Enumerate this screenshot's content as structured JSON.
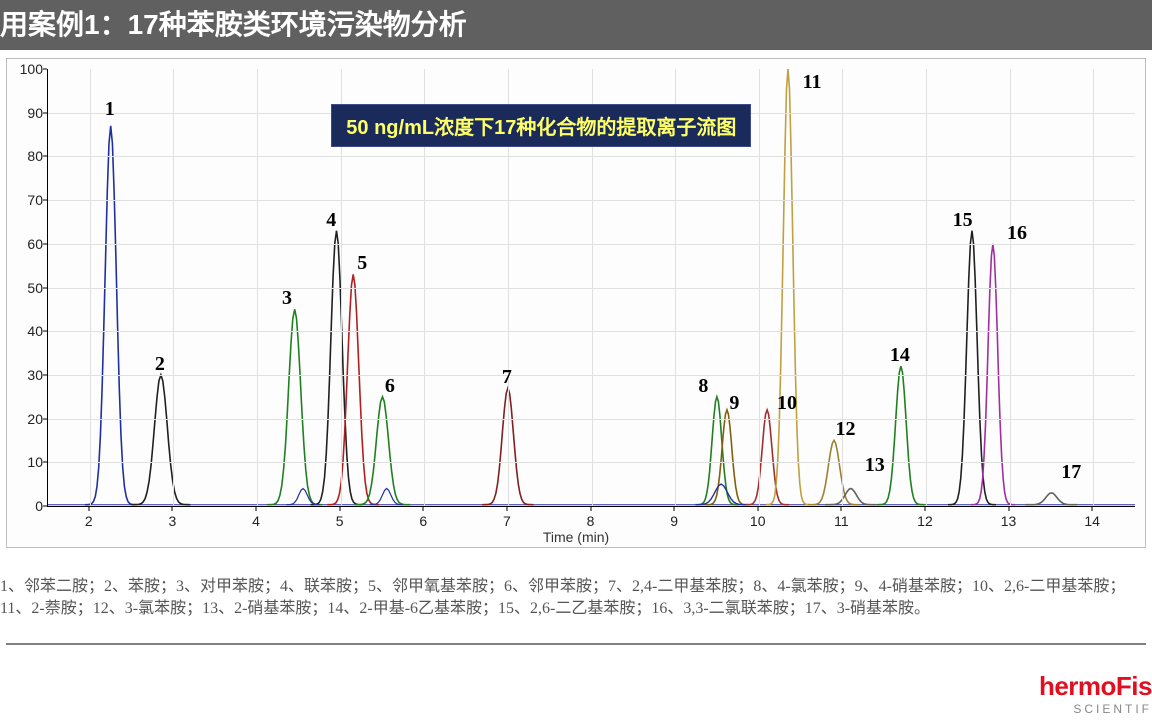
{
  "title": "用案例1：17种苯胺类环境污染物分析",
  "banner_text": "50 ng/mL浓度下17种化合物的提取离子流图",
  "footnote_line1": "1、邻苯二胺；2、苯胺；3、对甲苯胺；4、联苯胺；5、邻甲氧基苯胺；6、邻甲苯胺；7、2,4-二甲基苯胺；8、4-氯苯胺；9、4-硝基苯胺；10、2,6-二甲基苯胺；",
  "footnote_line2": "11、2-萘胺；12、3-氯苯胺；13、2-硝基苯胺；14、2-甲基-6乙基苯胺；15、2,6-二乙基苯胺；16、3,3-二氯联苯胺；17、3-硝基苯胺。",
  "logo_main": "hermoFis",
  "logo_sub": "SCIENTIF",
  "chart": {
    "xlabel": "Time (min)",
    "xlim": [
      1.5,
      14.5
    ],
    "ylim": [
      0,
      100
    ],
    "xtick_step": 1,
    "ytick_step": 10,
    "xticks": [
      2,
      3,
      4,
      5,
      6,
      7,
      8,
      9,
      10,
      11,
      12,
      13,
      14
    ],
    "yticks": [
      0,
      10,
      20,
      30,
      40,
      50,
      60,
      70,
      80,
      90,
      100
    ],
    "grid_color": "#e0e0e0",
    "background": "#fdfdfd",
    "banner_pos": {
      "x_min": 4.9,
      "y": 92
    },
    "peaks": [
      {
        "n": "1",
        "x": 2.25,
        "h": 87,
        "w": 0.14,
        "color": "#2030a0"
      },
      {
        "n": "2",
        "x": 2.85,
        "h": 30,
        "w": 0.16,
        "color": "#202020"
      },
      {
        "n": "3",
        "x": 4.45,
        "h": 45,
        "w": 0.15,
        "color": "#208020"
      },
      {
        "n": "4",
        "x": 4.95,
        "h": 63,
        "w": 0.14,
        "color": "#202020"
      },
      {
        "n": "5",
        "x": 5.15,
        "h": 53,
        "w": 0.14,
        "color": "#b02020"
      },
      {
        "n": "6",
        "x": 5.5,
        "h": 25,
        "w": 0.15,
        "color": "#208020"
      },
      {
        "n": "7",
        "x": 7.0,
        "h": 27,
        "w": 0.14,
        "color": "#802020"
      },
      {
        "n": "8",
        "x": 9.5,
        "h": 25,
        "w": 0.12,
        "color": "#208020"
      },
      {
        "n": "9",
        "x": 9.62,
        "h": 22,
        "w": 0.12,
        "color": "#806010"
      },
      {
        "n": "10",
        "x": 10.1,
        "h": 22,
        "w": 0.12,
        "color": "#a03030"
      },
      {
        "n": "11",
        "x": 10.35,
        "h": 100,
        "w": 0.12,
        "color": "#c0a040"
      },
      {
        "n": "12",
        "x": 10.9,
        "h": 15,
        "w": 0.14,
        "color": "#a08030"
      },
      {
        "n": "13",
        "x": 11.1,
        "h": 4,
        "w": 0.14,
        "color": "#606060"
      },
      {
        "n": "14",
        "x": 11.7,
        "h": 32,
        "w": 0.13,
        "color": "#208020"
      },
      {
        "n": "15",
        "x": 12.55,
        "h": 63,
        "w": 0.13,
        "color": "#202020"
      },
      {
        "n": "16",
        "x": 12.8,
        "h": 60,
        "w": 0.12,
        "color": "#a030a0"
      },
      {
        "n": "17",
        "x": 13.5,
        "h": 3,
        "w": 0.14,
        "color": "#606060"
      }
    ],
    "label_offsets": {
      "1": {
        "dx": 0,
        "dy": -28
      },
      "2": {
        "dx": 0,
        "dy": -22
      },
      "3": {
        "dx": -0.08,
        "dy": -22
      },
      "4": {
        "dx": -0.05,
        "dy": -22
      },
      "5": {
        "dx": 0.12,
        "dy": -22
      },
      "6": {
        "dx": 0.1,
        "dy": -22
      },
      "7": {
        "dx": 0,
        "dy": -22
      },
      "8": {
        "dx": -0.15,
        "dy": -22
      },
      "9": {
        "dx": 0.1,
        "dy": -18
      },
      "10": {
        "dx": 0.25,
        "dy": -18
      },
      "11": {
        "dx": 0.3,
        "dy": 2
      },
      "12": {
        "dx": 0.15,
        "dy": -22
      },
      "13": {
        "dx": 0.3,
        "dy": -35
      },
      "14": {
        "dx": 0,
        "dy": -22
      },
      "15": {
        "dx": -0.1,
        "dy": -22
      },
      "16": {
        "dx": 0.3,
        "dy": -22
      },
      "17": {
        "dx": 0.25,
        "dy": -32
      }
    }
  }
}
